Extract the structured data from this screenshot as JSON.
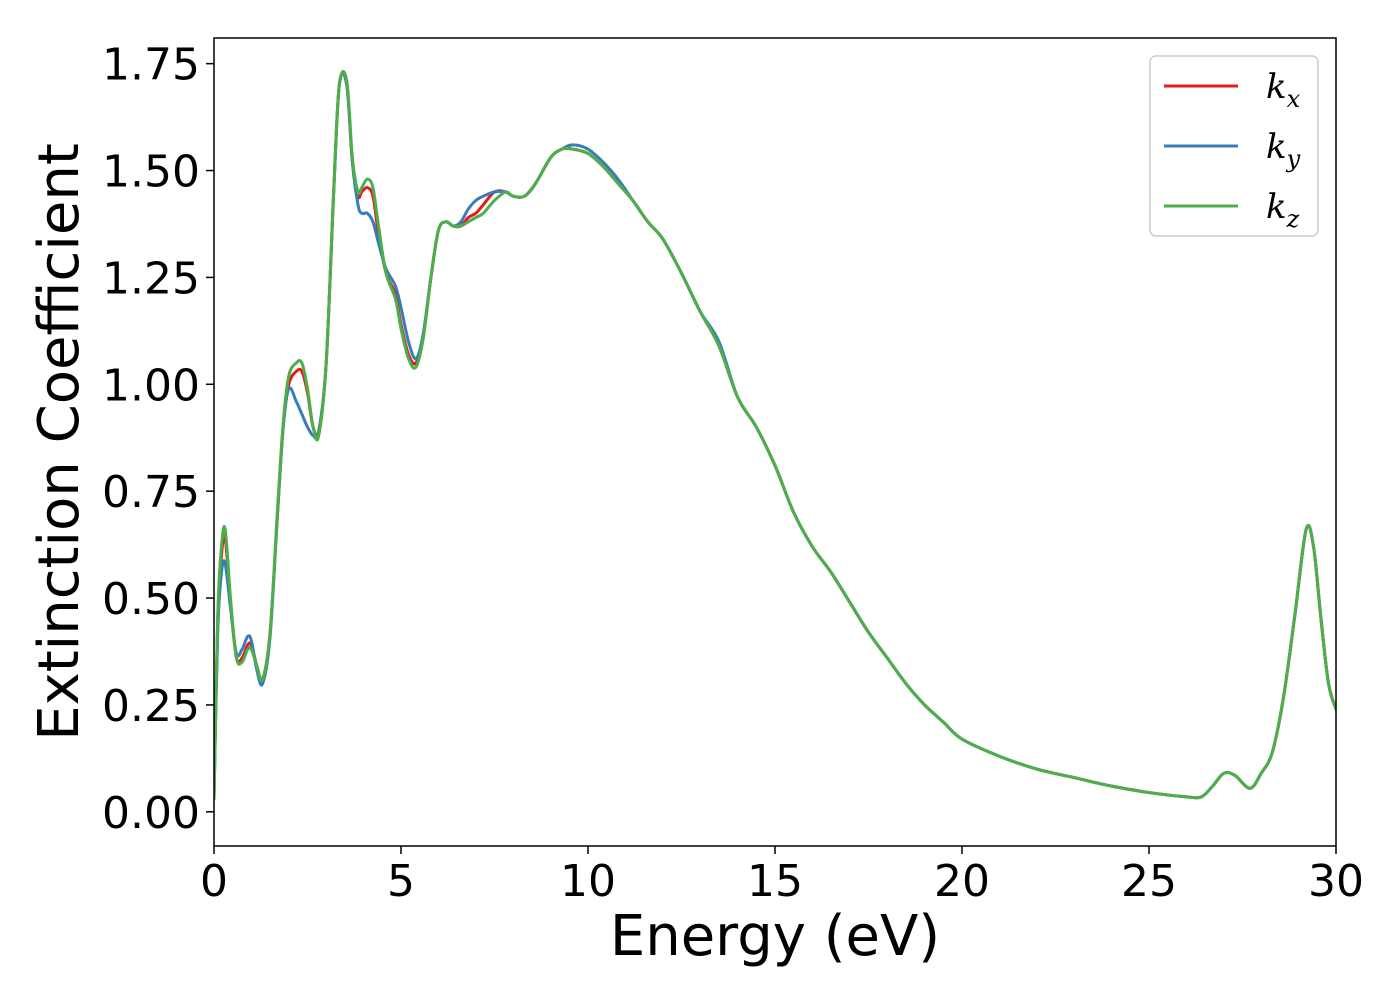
{
  "chart_data": {
    "type": "line",
    "title": "",
    "xlabel": "Energy (eV)",
    "ylabel": "Extinction Coefficient",
    "xlim": [
      0,
      30
    ],
    "ylim": [
      -0.08,
      1.81
    ],
    "xticks": [
      0,
      5,
      10,
      15,
      20,
      25,
      30
    ],
    "xtick_labels": [
      "0",
      "5",
      "10",
      "15",
      "20",
      "25",
      "30"
    ],
    "yticks": [
      0.0,
      0.25,
      0.5,
      0.75,
      1.0,
      1.25,
      1.5,
      1.75
    ],
    "ytick_labels": [
      "0.00",
      "0.25",
      "0.50",
      "0.75",
      "1.00",
      "1.25",
      "1.50",
      "1.75"
    ],
    "grid": false,
    "legend_position": "top-right",
    "series": [
      {
        "name": "k_x",
        "color": "#e41a1c",
        "x": [
          0,
          0.1,
          0.2,
          0.3,
          0.45,
          0.6,
          0.75,
          0.9,
          1.0,
          1.15,
          1.3,
          1.5,
          1.7,
          1.85,
          2.0,
          2.2,
          2.35,
          2.5,
          2.65,
          2.8,
          3.0,
          3.2,
          3.35,
          3.55,
          3.7,
          3.85,
          3.95,
          4.1,
          4.25,
          4.4,
          4.6,
          4.85,
          5.0,
          5.2,
          5.4,
          5.6,
          5.8,
          6.0,
          6.2,
          6.4,
          6.6,
          6.8,
          7.0,
          7.2,
          7.5,
          7.8,
          8.0,
          8.3,
          8.6,
          9.0,
          9.3,
          9.6,
          10.0,
          10.4,
          10.8,
          11.2,
          11.6,
          12.0,
          12.5,
          13.0,
          13.5,
          14.0,
          14.5,
          15.0,
          15.5,
          16.0,
          16.5,
          17.0,
          17.5,
          18.0,
          18.5,
          19.0,
          19.5,
          20.0,
          21.0,
          22.0,
          23.0,
          24.0,
          25.0,
          26.0,
          26.4,
          26.7,
          27.0,
          27.3,
          27.7,
          28.0,
          28.3,
          28.6,
          28.9,
          29.2,
          29.4,
          29.6,
          29.8,
          30.0
        ],
        "y": [
          0.03,
          0.45,
          0.6,
          0.64,
          0.48,
          0.36,
          0.36,
          0.39,
          0.39,
          0.34,
          0.31,
          0.42,
          0.7,
          0.9,
          1.0,
          1.03,
          1.03,
          0.98,
          0.9,
          0.89,
          1.05,
          1.45,
          1.7,
          1.7,
          1.52,
          1.44,
          1.45,
          1.46,
          1.44,
          1.35,
          1.26,
          1.21,
          1.14,
          1.07,
          1.05,
          1.12,
          1.25,
          1.36,
          1.38,
          1.37,
          1.37,
          1.39,
          1.4,
          1.42,
          1.45,
          1.45,
          1.44,
          1.44,
          1.47,
          1.53,
          1.55,
          1.55,
          1.54,
          1.51,
          1.47,
          1.43,
          1.38,
          1.34,
          1.26,
          1.17,
          1.09,
          0.97,
          0.9,
          0.81,
          0.7,
          0.62,
          0.56,
          0.49,
          0.42,
          0.36,
          0.3,
          0.25,
          0.21,
          0.17,
          0.13,
          0.1,
          0.08,
          0.06,
          0.045,
          0.035,
          0.035,
          0.06,
          0.09,
          0.085,
          0.055,
          0.09,
          0.14,
          0.27,
          0.46,
          0.66,
          0.62,
          0.45,
          0.3,
          0.24
        ]
      },
      {
        "name": "k_y",
        "color": "#377eb8",
        "x": [
          0,
          0.1,
          0.2,
          0.3,
          0.45,
          0.6,
          0.75,
          0.9,
          1.0,
          1.15,
          1.3,
          1.5,
          1.7,
          1.85,
          2.0,
          2.2,
          2.35,
          2.5,
          2.65,
          2.8,
          3.0,
          3.2,
          3.35,
          3.55,
          3.7,
          3.85,
          3.95,
          4.1,
          4.25,
          4.4,
          4.6,
          4.85,
          5.0,
          5.2,
          5.4,
          5.6,
          5.8,
          6.0,
          6.2,
          6.4,
          6.6,
          6.8,
          7.0,
          7.2,
          7.5,
          7.8,
          8.0,
          8.3,
          8.6,
          9.0,
          9.3,
          9.6,
          10.0,
          10.4,
          10.8,
          11.2,
          11.6,
          12.0,
          12.5,
          13.0,
          13.5,
          14.0,
          14.5,
          15.0,
          15.5,
          16.0,
          16.5,
          17.0,
          17.5,
          18.0,
          18.5,
          19.0,
          19.5,
          20.0,
          21.0,
          22.0,
          23.0,
          24.0,
          25.0,
          26.0,
          26.4,
          26.7,
          27.0,
          27.3,
          27.7,
          28.0,
          28.3,
          28.6,
          28.9,
          29.2,
          29.4,
          29.6,
          29.8,
          30.0
        ],
        "y": [
          0.03,
          0.42,
          0.56,
          0.58,
          0.47,
          0.37,
          0.38,
          0.41,
          0.4,
          0.33,
          0.3,
          0.41,
          0.7,
          0.9,
          0.99,
          0.96,
          0.93,
          0.9,
          0.88,
          0.89,
          1.05,
          1.45,
          1.7,
          1.7,
          1.52,
          1.42,
          1.4,
          1.4,
          1.38,
          1.33,
          1.27,
          1.23,
          1.18,
          1.1,
          1.06,
          1.12,
          1.25,
          1.36,
          1.38,
          1.37,
          1.38,
          1.41,
          1.43,
          1.44,
          1.45,
          1.45,
          1.44,
          1.44,
          1.47,
          1.53,
          1.55,
          1.56,
          1.55,
          1.52,
          1.48,
          1.43,
          1.38,
          1.34,
          1.26,
          1.17,
          1.1,
          0.97,
          0.9,
          0.81,
          0.7,
          0.62,
          0.56,
          0.49,
          0.42,
          0.36,
          0.3,
          0.25,
          0.21,
          0.17,
          0.13,
          0.1,
          0.08,
          0.06,
          0.045,
          0.035,
          0.035,
          0.06,
          0.09,
          0.085,
          0.055,
          0.09,
          0.14,
          0.27,
          0.46,
          0.66,
          0.62,
          0.45,
          0.3,
          0.24
        ]
      },
      {
        "name": "k_z",
        "color": "#4daf4a",
        "x": [
          0,
          0.1,
          0.2,
          0.3,
          0.45,
          0.6,
          0.75,
          0.9,
          1.0,
          1.15,
          1.3,
          1.5,
          1.7,
          1.85,
          2.0,
          2.2,
          2.35,
          2.5,
          2.65,
          2.8,
          3.0,
          3.2,
          3.35,
          3.55,
          3.7,
          3.85,
          3.95,
          4.1,
          4.25,
          4.4,
          4.6,
          4.85,
          5.0,
          5.2,
          5.4,
          5.6,
          5.8,
          6.0,
          6.2,
          6.4,
          6.6,
          6.8,
          7.0,
          7.2,
          7.5,
          7.8,
          8.0,
          8.3,
          8.6,
          9.0,
          9.3,
          9.6,
          10.0,
          10.4,
          10.8,
          11.2,
          11.6,
          12.0,
          12.5,
          13.0,
          13.5,
          14.0,
          14.5,
          15.0,
          15.5,
          16.0,
          16.5,
          17.0,
          17.5,
          18.0,
          18.5,
          19.0,
          19.5,
          20.0,
          21.0,
          22.0,
          23.0,
          24.0,
          25.0,
          26.0,
          26.4,
          26.7,
          27.0,
          27.3,
          27.7,
          28.0,
          28.3,
          28.6,
          28.9,
          29.2,
          29.4,
          29.6,
          29.8,
          30.0
        ],
        "y": [
          0.03,
          0.46,
          0.62,
          0.66,
          0.49,
          0.36,
          0.35,
          0.38,
          0.38,
          0.34,
          0.31,
          0.42,
          0.71,
          0.91,
          1.02,
          1.05,
          1.05,
          0.99,
          0.9,
          0.88,
          1.05,
          1.45,
          1.7,
          1.71,
          1.53,
          1.45,
          1.46,
          1.48,
          1.46,
          1.37,
          1.26,
          1.2,
          1.13,
          1.06,
          1.04,
          1.11,
          1.25,
          1.36,
          1.38,
          1.37,
          1.37,
          1.38,
          1.39,
          1.4,
          1.43,
          1.45,
          1.44,
          1.44,
          1.47,
          1.53,
          1.55,
          1.55,
          1.54,
          1.51,
          1.47,
          1.43,
          1.38,
          1.34,
          1.26,
          1.17,
          1.09,
          0.97,
          0.9,
          0.81,
          0.7,
          0.62,
          0.56,
          0.49,
          0.42,
          0.36,
          0.3,
          0.25,
          0.21,
          0.17,
          0.13,
          0.1,
          0.08,
          0.06,
          0.045,
          0.035,
          0.035,
          0.06,
          0.09,
          0.085,
          0.055,
          0.09,
          0.14,
          0.27,
          0.46,
          0.66,
          0.62,
          0.45,
          0.3,
          0.24
        ]
      }
    ]
  },
  "legend": [
    {
      "base": "k",
      "sub": "x"
    },
    {
      "base": "k",
      "sub": "y"
    },
    {
      "base": "k",
      "sub": "z"
    }
  ]
}
